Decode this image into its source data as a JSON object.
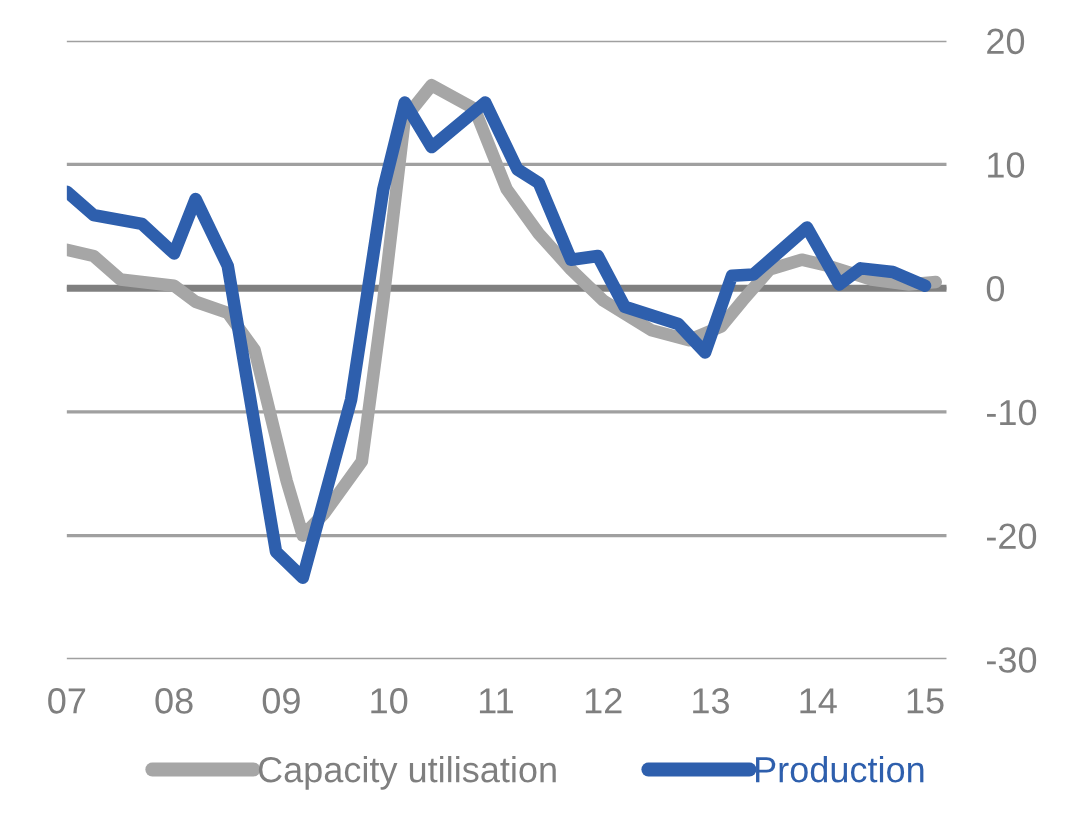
{
  "chart_data": {
    "type": "line",
    "xlim": [
      2007,
      2015.2
    ],
    "xticks": [
      {
        "value": 2007,
        "label": "07"
      },
      {
        "value": 2008,
        "label": "08"
      },
      {
        "value": 2009,
        "label": "09"
      },
      {
        "value": 2010,
        "label": "10"
      },
      {
        "value": 2011,
        "label": "11"
      },
      {
        "value": 2012,
        "label": "12"
      },
      {
        "value": 2013,
        "label": "13"
      },
      {
        "value": 2014,
        "label": "14"
      },
      {
        "value": 2015,
        "label": "15"
      }
    ],
    "ylim": [
      -30,
      20
    ],
    "yticks": [
      -30,
      -20,
      -10,
      0,
      10,
      20
    ],
    "grid": "y",
    "legend": "bottom",
    "line_style": "solid",
    "marker": "none",
    "ref_lines": [
      {
        "axis": "y",
        "value": 0,
        "color": "#808080"
      }
    ],
    "series": [
      {
        "name": "Capacity utilisation",
        "color": "#a6a6a6",
        "x": [
          2007,
          2007.25,
          2007.5,
          2008,
          2008.2,
          2008.5,
          2008.75,
          2009.05,
          2009.2,
          2009.4,
          2009.75,
          2009.95,
          2010.15,
          2010.4,
          2010.8,
          2011.1,
          2011.4,
          2011.7,
          2012,
          2012.45,
          2012.8,
          2013.1,
          2013.3,
          2013.55,
          2013.85,
          2014.1,
          2014.5,
          2014.85,
          2015.1
        ],
        "values": [
          3.1,
          2.6,
          0.7,
          0.2,
          -1.1,
          -2,
          -5,
          -15.6,
          -20,
          -18.2,
          -14,
          -1,
          13.7,
          16.4,
          14.5,
          8,
          4.4,
          1.5,
          -1,
          -3.4,
          -4.2,
          -3.1,
          -1,
          1.5,
          2.3,
          1.8,
          0.7,
          0.3,
          0.5
        ]
      },
      {
        "name": "Production",
        "color": "#2e5fad",
        "x": [
          2007,
          2007.25,
          2007.7,
          2008,
          2008.2,
          2008.5,
          2008.95,
          2009.2,
          2009.65,
          2009.95,
          2010.15,
          2010.4,
          2010.9,
          2011.2,
          2011.4,
          2011.7,
          2011.95,
          2012.2,
          2012.7,
          2012.95,
          2013.2,
          2013.4,
          2013.9,
          2014.2,
          2014.4,
          2014.7,
          2015
        ],
        "values": [
          7.8,
          5.9,
          5.2,
          2.8,
          7.2,
          1.8,
          -21.3,
          -23.4,
          -9,
          8,
          15,
          11.4,
          15,
          9.6,
          8.5,
          2.3,
          2.6,
          -1.5,
          -2.9,
          -5.2,
          1,
          1.1,
          4.9,
          0.3,
          1.6,
          1.3,
          0.2
        ]
      }
    ]
  }
}
